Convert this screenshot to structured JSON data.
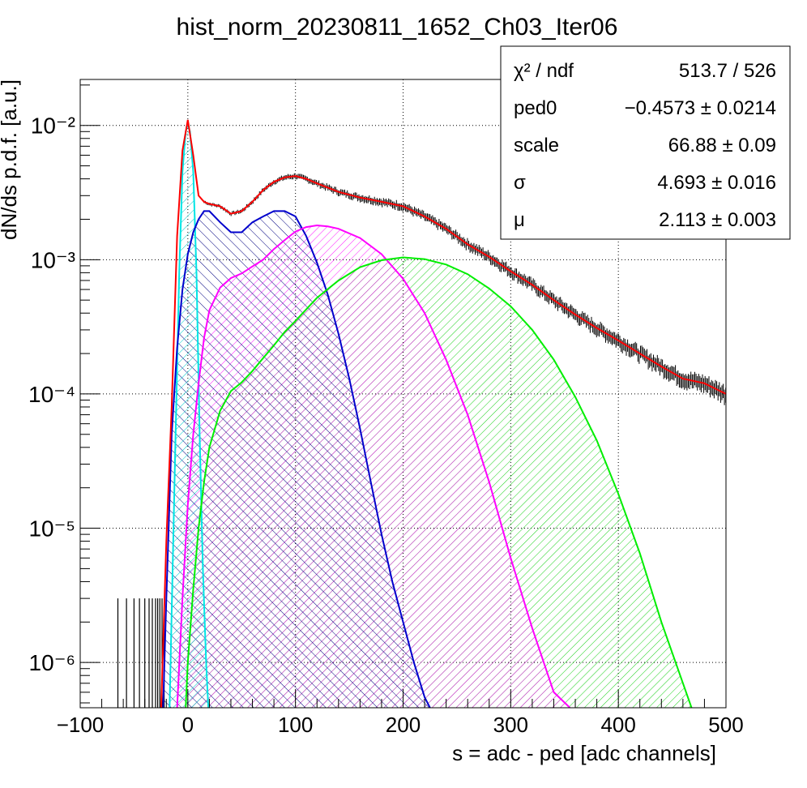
{
  "chart_data": {
    "type": "histogram-fit",
    "title": "hist_norm_20230811_1652_Ch03_Iter06",
    "xlabel": "s = adc - ped [adc channels]",
    "ylabel": "dN/ds p.d.f. [a.u.]",
    "xlim": [
      -100,
      500
    ],
    "ylim": [
      4.6e-07,
      0.022
    ],
    "yscale": "log",
    "grid": true,
    "x_ticks": [
      -100,
      0,
      100,
      200,
      300,
      400,
      500
    ],
    "x_tick_labels": [
      "−100",
      "0",
      "100",
      "200",
      "300",
      "400",
      "500"
    ],
    "y_ticks": [
      1e-06,
      1e-05,
      0.0001,
      0.001,
      0.01
    ],
    "y_tick_labels": [
      "10⁻⁶",
      "10⁻⁵",
      "10⁻⁴",
      "10⁻³",
      "10⁻²"
    ],
    "stats": [
      {
        "name": "χ² / ndf",
        "value": "513.7 / 526"
      },
      {
        "name": "ped0",
        "value": "−0.4573 ± 0.0214"
      },
      {
        "name": "scale",
        "value": "66.88 ± 0.09"
      },
      {
        "name": "σ",
        "value": "4.693 ± 0.016"
      },
      {
        "name": "μ",
        "value": "2.113 ± 0.003"
      }
    ],
    "series": [
      {
        "color": "#000000",
        "style": "histogram",
        "x": [
          -65,
          -55,
          -45,
          -35,
          -30,
          -25,
          -20,
          -15,
          -10,
          -5,
          0,
          5,
          10,
          15,
          20,
          30,
          40,
          50,
          60,
          70,
          80,
          90,
          100,
          110,
          120,
          140,
          160,
          180,
          200,
          220,
          240,
          260,
          280,
          300,
          320,
          340,
          360,
          380,
          400,
          420,
          440,
          460,
          480,
          500
        ],
        "y": [
          3e-06,
          3e-06,
          3e-06,
          3e-06,
          3e-06,
          3e-06,
          8e-06,
          8e-05,
          0.0015,
          0.0065,
          0.011,
          0.006,
          0.003,
          0.0027,
          0.0026,
          0.0025,
          0.0022,
          0.0023,
          0.0027,
          0.0033,
          0.0038,
          0.0041,
          0.0042,
          0.004,
          0.0037,
          0.0032,
          0.0029,
          0.0027,
          0.0025,
          0.0021,
          0.0017,
          0.0013,
          0.00105,
          0.00082,
          0.00065,
          0.0005,
          0.00039,
          0.00031,
          0.00025,
          0.0002,
          0.00016,
          0.00013,
          0.00012,
          0.0001
        ]
      },
      {
        "color": "#ff0000",
        "style": "fit-line",
        "x": [
          -25,
          -20,
          -15,
          -10,
          -5,
          0,
          5,
          10,
          15,
          20,
          30,
          40,
          50,
          60,
          70,
          80,
          90,
          100,
          110,
          120,
          140,
          160,
          180,
          200,
          220,
          240,
          260,
          280,
          300,
          320,
          340,
          360,
          380,
          400,
          420,
          440,
          460,
          480,
          500
        ],
        "y": [
          4e-07,
          8e-06,
          8e-05,
          0.0015,
          0.0065,
          0.011,
          0.006,
          0.003,
          0.0027,
          0.0026,
          0.0025,
          0.0022,
          0.0023,
          0.0027,
          0.0033,
          0.0038,
          0.0041,
          0.0042,
          0.004,
          0.0037,
          0.0032,
          0.0029,
          0.0027,
          0.0025,
          0.0021,
          0.0017,
          0.0013,
          0.00105,
          0.00082,
          0.00065,
          0.0005,
          0.00039,
          0.00031,
          0.00025,
          0.0002,
          0.00016,
          0.00013,
          0.00012,
          0.0001
        ]
      },
      {
        "color": "#00e5e5",
        "style": "hatched-component",
        "x": [
          -17,
          -12,
          -8,
          -5,
          -2,
          0,
          2,
          5,
          8,
          11,
          14,
          17,
          19
        ],
        "y": [
          4.6e-07,
          3e-05,
          0.0008,
          0.0045,
          0.009,
          0.0102,
          0.009,
          0.0045,
          0.0008,
          5e-05,
          5e-06,
          1e-06,
          4.6e-07
        ]
      },
      {
        "color": "#0000cc",
        "style": "hatched-component",
        "x": [
          -23,
          -20,
          -15,
          -10,
          -5,
          0,
          5,
          10,
          15,
          20,
          30,
          40,
          50,
          60,
          70,
          80,
          90,
          100,
          110,
          120,
          130,
          140,
          150,
          160,
          170,
          180,
          190,
          200,
          210,
          220,
          225
        ],
        "y": [
          4.6e-07,
          3e-06,
          5e-05,
          0.00022,
          0.0006,
          0.0011,
          0.0016,
          0.002,
          0.0023,
          0.0023,
          0.0019,
          0.0016,
          0.0016,
          0.0019,
          0.0021,
          0.0023,
          0.0023,
          0.0021,
          0.0015,
          0.00095,
          0.00055,
          0.00028,
          0.00013,
          5.5e-05,
          2.2e-05,
          9e-06,
          4e-06,
          2e-06,
          1e-06,
          5.5e-07,
          4.6e-07
        ]
      },
      {
        "color": "#ff00ff",
        "style": "hatched-component",
        "x": [
          -10,
          -5,
          0,
          5,
          10,
          15,
          20,
          30,
          40,
          50,
          60,
          70,
          80,
          90,
          100,
          110,
          120,
          130,
          140,
          160,
          180,
          200,
          220,
          240,
          260,
          280,
          300,
          320,
          340,
          355
        ],
        "y": [
          4.6e-07,
          3e-06,
          1.5e-05,
          5e-05,
          0.00012,
          0.00026,
          0.00042,
          0.00062,
          0.00073,
          0.00079,
          0.00089,
          0.001,
          0.0012,
          0.0014,
          0.00162,
          0.00175,
          0.0018,
          0.00177,
          0.0017,
          0.00145,
          0.0011,
          0.00072,
          0.0004,
          0.00018,
          7e-05,
          2.2e-05,
          6e-06,
          1.8e-06,
          6e-07,
          4.6e-07
        ]
      },
      {
        "color": "#00ee00",
        "style": "hatched-component",
        "x": [
          -2,
          0,
          5,
          10,
          15,
          20,
          30,
          40,
          50,
          60,
          70,
          80,
          90,
          100,
          120,
          140,
          160,
          180,
          200,
          220,
          240,
          260,
          280,
          300,
          320,
          340,
          360,
          380,
          400,
          420,
          440,
          460,
          468
        ],
        "y": [
          4.6e-07,
          1e-06,
          3.5e-06,
          1e-05,
          2.2e-05,
          4e-05,
          7.5e-05,
          0.000105,
          0.000122,
          0.000148,
          0.000185,
          0.00023,
          0.00029,
          0.00035,
          0.00052,
          0.0007,
          0.00088,
          0.00099,
          0.00104,
          0.00101,
          0.00092,
          0.00078,
          0.00061,
          0.00045,
          0.0003,
          0.00018,
          9.5e-05,
          4.5e-05,
          1.8e-05,
          6.5e-06,
          2e-06,
          7e-07,
          4.6e-07
        ]
      }
    ]
  }
}
